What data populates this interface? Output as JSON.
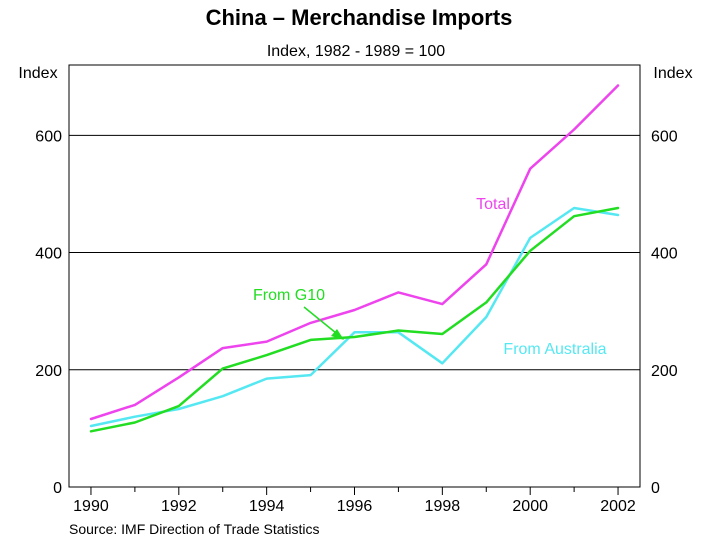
{
  "chart_data": {
    "type": "line",
    "title": "China – Merchandise Imports",
    "subtitle": "Index, 1982 - 1989 = 100",
    "ylabel_left": "Index",
    "ylabel_right": "Index",
    "source": "Source: IMF Direction of Trade Statistics",
    "x": [
      1990,
      1991,
      1992,
      1993,
      1994,
      1995,
      1996,
      1997,
      1998,
      1999,
      2000,
      2001,
      2002
    ],
    "xlim": [
      1989.5,
      2002.5
    ],
    "ylim": [
      0,
      720
    ],
    "x_ticks": [
      1990,
      1992,
      1994,
      1996,
      1998,
      2000,
      2002
    ],
    "y_ticks": [
      0,
      200,
      400,
      600
    ],
    "grid": true,
    "series": [
      {
        "name": "Total",
        "color": "#ee44ee",
        "values": [
          116,
          140,
          187,
          237,
          248,
          280,
          302,
          332,
          312,
          380,
          543,
          610,
          685
        ]
      },
      {
        "name": "From G10",
        "color": "#22dd22",
        "values": [
          95,
          110,
          138,
          202,
          225,
          251,
          256,
          267,
          261,
          315,
          403,
          462,
          476
        ]
      },
      {
        "name": "From Australia",
        "color": "#55e8f2",
        "values": [
          104,
          120,
          133,
          155,
          185,
          191,
          264,
          264,
          211,
          290,
          425,
          476,
          464
        ]
      }
    ]
  }
}
